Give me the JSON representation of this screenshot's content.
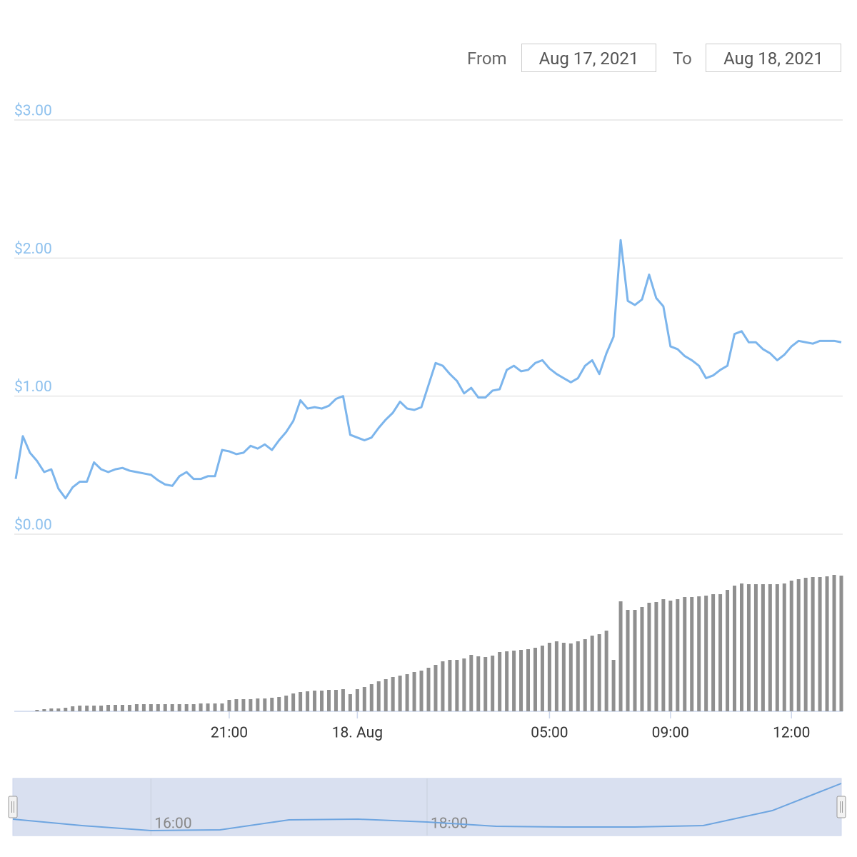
{
  "range_selector": {
    "from_label": "From",
    "from_value": "Aug 17, 2021",
    "to_label": "To",
    "to_value": "Aug 18, 2021"
  },
  "chart_data": [
    {
      "type": "line",
      "categories": [
        null,
        null,
        null,
        null,
        null,
        null,
        null,
        null,
        null,
        null,
        null,
        null,
        null,
        null,
        null,
        null,
        null,
        null,
        null,
        null,
        null,
        null,
        null,
        null,
        null,
        null,
        null,
        null,
        null,
        null,
        "21:00",
        null,
        null,
        null,
        null,
        null,
        null,
        null,
        null,
        null,
        null,
        null,
        null,
        null,
        null,
        null,
        null,
        null,
        "18. Aug",
        null,
        null,
        null,
        null,
        null,
        null,
        null,
        null,
        null,
        null,
        null,
        null,
        null,
        null,
        null,
        null,
        null,
        null,
        null,
        null,
        null,
        null,
        null,
        null,
        null,
        null,
        "05:00",
        null,
        null,
        null,
        null,
        null,
        null,
        null,
        null,
        null,
        null,
        null,
        null,
        null,
        null,
        null,
        null,
        "09:00",
        null,
        null,
        null,
        null,
        null,
        null,
        null,
        null,
        null,
        null,
        null,
        null,
        null,
        null,
        null,
        null,
        "12:00",
        null,
        null,
        null,
        null,
        null,
        null,
        null
      ],
      "series": [
        {
          "color": "#7cb5ec",
          "values": [
            0.4,
            0.71,
            0.59,
            0.53,
            0.45,
            0.47,
            0.33,
            0.26,
            0.34,
            0.38,
            0.38,
            0.52,
            0.47,
            0.45,
            0.47,
            0.48,
            0.46,
            0.45,
            0.44,
            0.43,
            0.39,
            0.36,
            0.35,
            0.42,
            0.45,
            0.4,
            0.4,
            0.42,
            0.42,
            0.61,
            0.6,
            0.58,
            0.59,
            0.64,
            0.62,
            0.65,
            0.61,
            0.68,
            0.74,
            0.82,
            0.97,
            0.91,
            0.92,
            0.91,
            0.93,
            0.98,
            1.0,
            0.72,
            0.7,
            0.68,
            0.7,
            0.77,
            0.83,
            0.88,
            0.96,
            0.91,
            0.9,
            0.92,
            1.08,
            1.24,
            1.22,
            1.16,
            1.11,
            1.02,
            1.06,
            0.99,
            0.99,
            1.04,
            1.05,
            1.19,
            1.22,
            1.18,
            1.19,
            1.24,
            1.26,
            1.2,
            1.16,
            1.13,
            1.1,
            1.13,
            1.22,
            1.26,
            1.16,
            1.31,
            1.43,
            2.13,
            1.69,
            1.66,
            1.7,
            1.88,
            1.71,
            1.65,
            1.36,
            1.34,
            1.29,
            1.26,
            1.22,
            1.13,
            1.15,
            1.19,
            1.22,
            1.45,
            1.47,
            1.39,
            1.39,
            1.34,
            1.31,
            1.26,
            1.3,
            1.36,
            1.4,
            1.39,
            1.38,
            1.4,
            1.4,
            1.4,
            1.39
          ]
        },
        {
          "type": "column",
          "axis": "y2",
          "color": "#8f8f8f",
          "values": [
            0,
            0,
            0,
            2,
            3,
            4,
            4,
            5,
            7,
            8,
            8,
            8,
            8,
            9,
            9,
            9,
            9,
            10,
            10,
            10,
            10,
            10,
            10,
            10,
            10,
            10,
            11,
            11,
            11,
            11,
            16,
            17,
            17,
            17,
            18,
            18,
            19,
            20,
            22,
            25,
            27,
            28,
            29,
            29,
            30,
            30,
            31,
            24,
            31,
            34,
            38,
            42,
            45,
            48,
            50,
            52,
            55,
            57,
            61,
            65,
            70,
            72,
            72,
            74,
            79,
            77,
            76,
            78,
            83,
            84,
            85,
            86,
            87,
            89,
            92,
            96,
            98,
            96,
            95,
            98,
            101,
            106,
            108,
            113,
            72,
            154,
            142,
            142,
            146,
            152,
            153,
            157,
            155,
            157,
            160,
            160,
            161,
            162,
            164,
            164,
            170,
            176,
            179,
            178,
            178,
            178,
            178,
            178,
            179,
            183,
            185,
            187,
            188,
            188,
            189,
            191,
            190
          ]
        }
      ],
      "ylim": [
        0,
        3
      ],
      "yticks": [
        {
          "value": 0,
          "label": "$0.00"
        },
        {
          "value": 1,
          "label": "$1.00"
        },
        {
          "value": 2,
          "label": "$2.00"
        },
        {
          "value": 3,
          "label": "$3.00"
        }
      ],
      "y2lim": [
        0,
        200
      ],
      "grid": true
    },
    {
      "type": "line",
      "categories": [
        null,
        null,
        "16:00",
        null,
        null,
        null,
        "18:00",
        null,
        null,
        null,
        null,
        null,
        null
      ],
      "values": [
        23,
        14,
        7,
        8,
        22,
        23,
        19,
        13,
        12,
        12,
        14,
        35,
        73
      ],
      "color": "#6ea5e0",
      "ylim": [
        0,
        80
      ]
    }
  ]
}
